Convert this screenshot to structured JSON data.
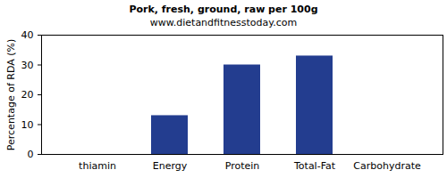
{
  "chart_data": {
    "type": "bar",
    "title": "Pork, fresh, ground, raw per 100g",
    "subtitle": "www.dietandfitnesstoday.com",
    "y_label": "Percentage of RDA (%)",
    "categories": [
      "thiamin",
      "Energy",
      "Protein",
      "Total-Fat",
      "Carbohydrate"
    ],
    "values": [
      0,
      13,
      30,
      33,
      0
    ],
    "color": "#233d8f",
    "ylim": [
      0,
      40
    ],
    "yticks": [
      0,
      10,
      20,
      30,
      40
    ],
    "grid": false
  }
}
